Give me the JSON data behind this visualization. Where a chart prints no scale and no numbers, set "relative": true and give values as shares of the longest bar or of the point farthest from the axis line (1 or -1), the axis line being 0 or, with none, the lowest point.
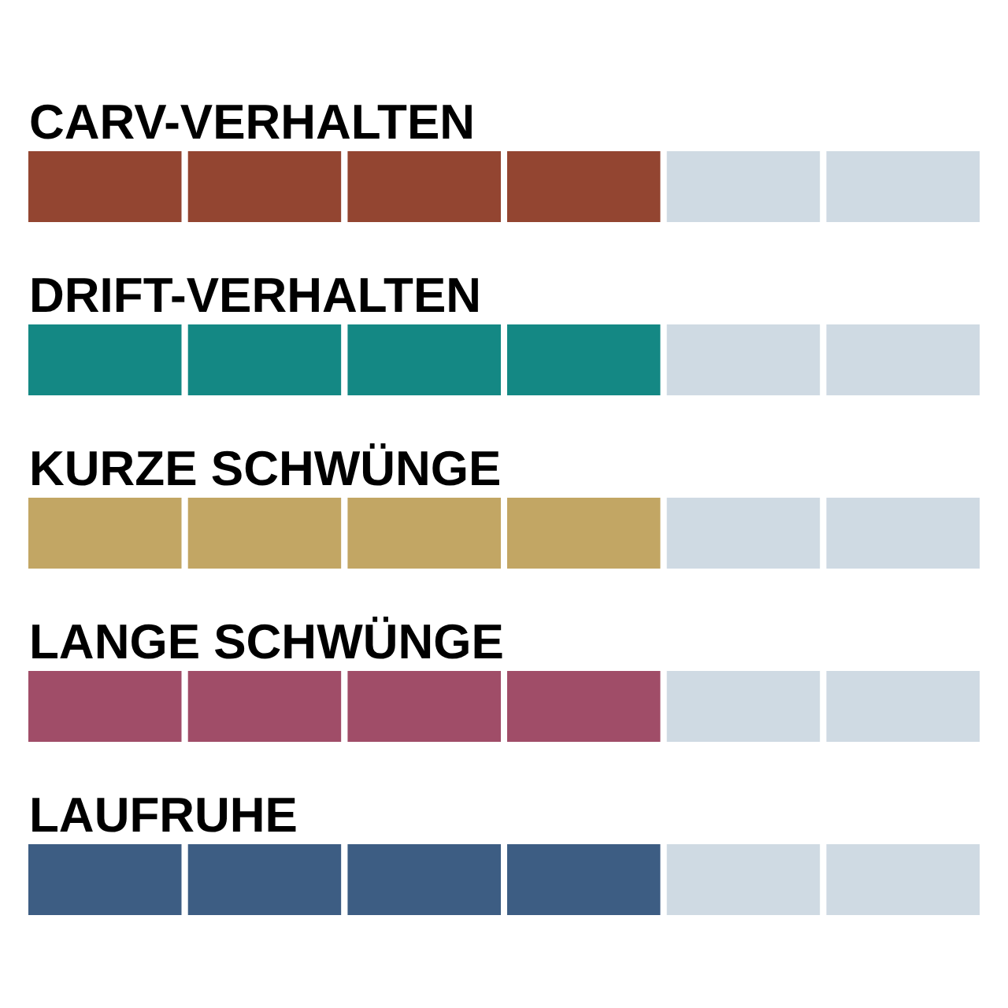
{
  "chart_data": {
    "type": "bar",
    "orientation": "horizontal",
    "stacked": true,
    "relative": true,
    "categories": [
      "CARV-VERHALTEN",
      "DRIFT-VERHALTEN",
      "KURZE SCHWÜNGE",
      "LANGE SCHWÜNGE",
      "LAUFRUHE"
    ],
    "series": [
      {
        "colors": [
          "#934531",
          "#148884",
          "#c2a664",
          "#a04d68",
          "#3d5d83"
        ],
        "values": [
          0.1667,
          0.1667,
          0.1667,
          0.1667,
          0.1667
        ]
      },
      {
        "colors": [
          "#934531",
          "#148884",
          "#c2a664",
          "#a04d68",
          "#3d5d83"
        ],
        "values": [
          0.1667,
          0.1667,
          0.1667,
          0.1667,
          0.1667
        ]
      },
      {
        "colors": [
          "#934531",
          "#148884",
          "#c2a664",
          "#a04d68",
          "#3d5d83"
        ],
        "values": [
          0.1666,
          0.1666,
          0.1666,
          0.1666,
          0.1666
        ]
      },
      {
        "colors": [
          "#934531",
          "#148884",
          "#c2a664",
          "#a04d68",
          "#3d5d83"
        ],
        "values": [
          0.1667,
          0.1667,
          0.1667,
          0.1667,
          0.1667
        ]
      },
      {
        "color": "#cfdae3",
        "values": [
          0.1667,
          0.1667,
          0.1667,
          0.1667,
          0.1667
        ]
      },
      {
        "color": "#cfdae3",
        "values": [
          0.1666,
          0.1666,
          0.1666,
          0.1666,
          0.1666
        ]
      }
    ]
  }
}
